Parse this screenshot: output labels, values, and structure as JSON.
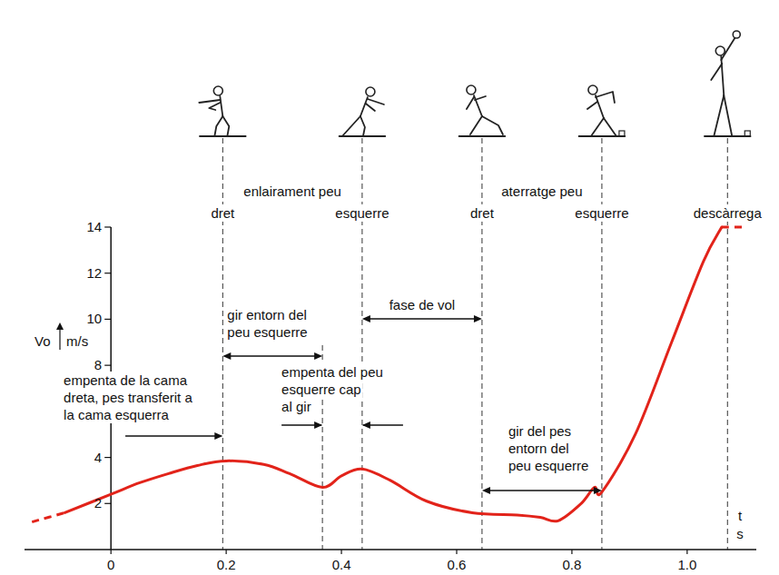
{
  "chart_data": {
    "type": "line",
    "xlabel": "t",
    "xunit": "s",
    "ylabel": "Vo",
    "yunit": "m/s",
    "x": [
      -0.137,
      -0.08,
      0,
      0.05,
      0.1,
      0.15,
      0.2,
      0.265,
      0.31,
      0.367,
      0.4,
      0.436,
      0.485,
      0.548,
      0.627,
      0.705,
      0.745,
      0.776,
      0.816,
      0.839,
      0.852,
      0.91,
      0.973,
      1.028,
      1.06,
      1.1
    ],
    "series": [
      {
        "color": "#e2231a",
        "line_style": "dashed",
        "values": [
          1.2,
          1.6,
          null,
          null,
          null,
          null,
          null,
          null,
          null,
          null,
          null,
          null,
          null,
          null,
          null,
          null,
          null,
          null,
          null,
          null,
          null,
          null,
          null,
          null,
          null,
          null
        ]
      },
      {
        "color": "#e2231a",
        "line_style": "solid",
        "values": [
          null,
          1.6,
          2.4,
          2.9,
          3.3,
          3.65,
          3.85,
          3.7,
          3.3,
          2.7,
          3.2,
          3.5,
          3,
          2.1,
          1.6,
          1.5,
          1.4,
          1.25,
          2,
          2.7,
          2.5,
          5,
          9,
          12.5,
          14,
          null
        ]
      },
      {
        "color": "#e2231a",
        "line_style": "dashed",
        "values": [
          null,
          null,
          null,
          null,
          null,
          null,
          null,
          null,
          null,
          null,
          null,
          null,
          null,
          null,
          null,
          null,
          null,
          null,
          null,
          null,
          null,
          null,
          null,
          null,
          14,
          14
        ]
      }
    ],
    "xlim": [
      -0.15,
      1.12
    ],
    "xticks": [
      0,
      0.2,
      0.4,
      0.6,
      0.8,
      {
        "value": 1,
        "label": "1.0"
      }
    ],
    "ylim": [
      0,
      14
    ],
    "yticks": [
      2,
      4,
      8,
      10,
      12,
      14
    ],
    "grid": false,
    "event_groups": [
      {
        "label": "enlairament peu",
        "events": [
          {
            "t": 0.194,
            "label": "dret"
          },
          {
            "t": 0.436,
            "label": "esquerre"
          }
        ]
      },
      {
        "label": "aterratge peu",
        "events": [
          {
            "t": 0.644,
            "label": "dret"
          },
          {
            "t": 0.852,
            "label": "esquerre"
          }
        ]
      }
    ],
    "release": {
      "t": 1.07,
      "label": "descàrrega"
    },
    "phases": [
      {
        "lines": [
          "empenta de la cama",
          "dreta, pes transferit a",
          "la cama esquerra"
        ],
        "start": 0.025,
        "end": 0.194
      },
      {
        "lines": [
          "gir entorn del",
          "peu esquerre"
        ],
        "start": 0.194,
        "end": 0.367
      },
      {
        "lines": [
          "fase de vol"
        ],
        "start": 0.436,
        "end": 0.644
      },
      {
        "lines": [
          "empenta del peu",
          "esquerre cap",
          "al gir"
        ],
        "start": 0.367,
        "end": 0.436
      },
      {
        "lines": [
          "gir del pes",
          "entorn del",
          "peu esquerre"
        ],
        "start": 0.644,
        "end": 0.852
      }
    ]
  }
}
